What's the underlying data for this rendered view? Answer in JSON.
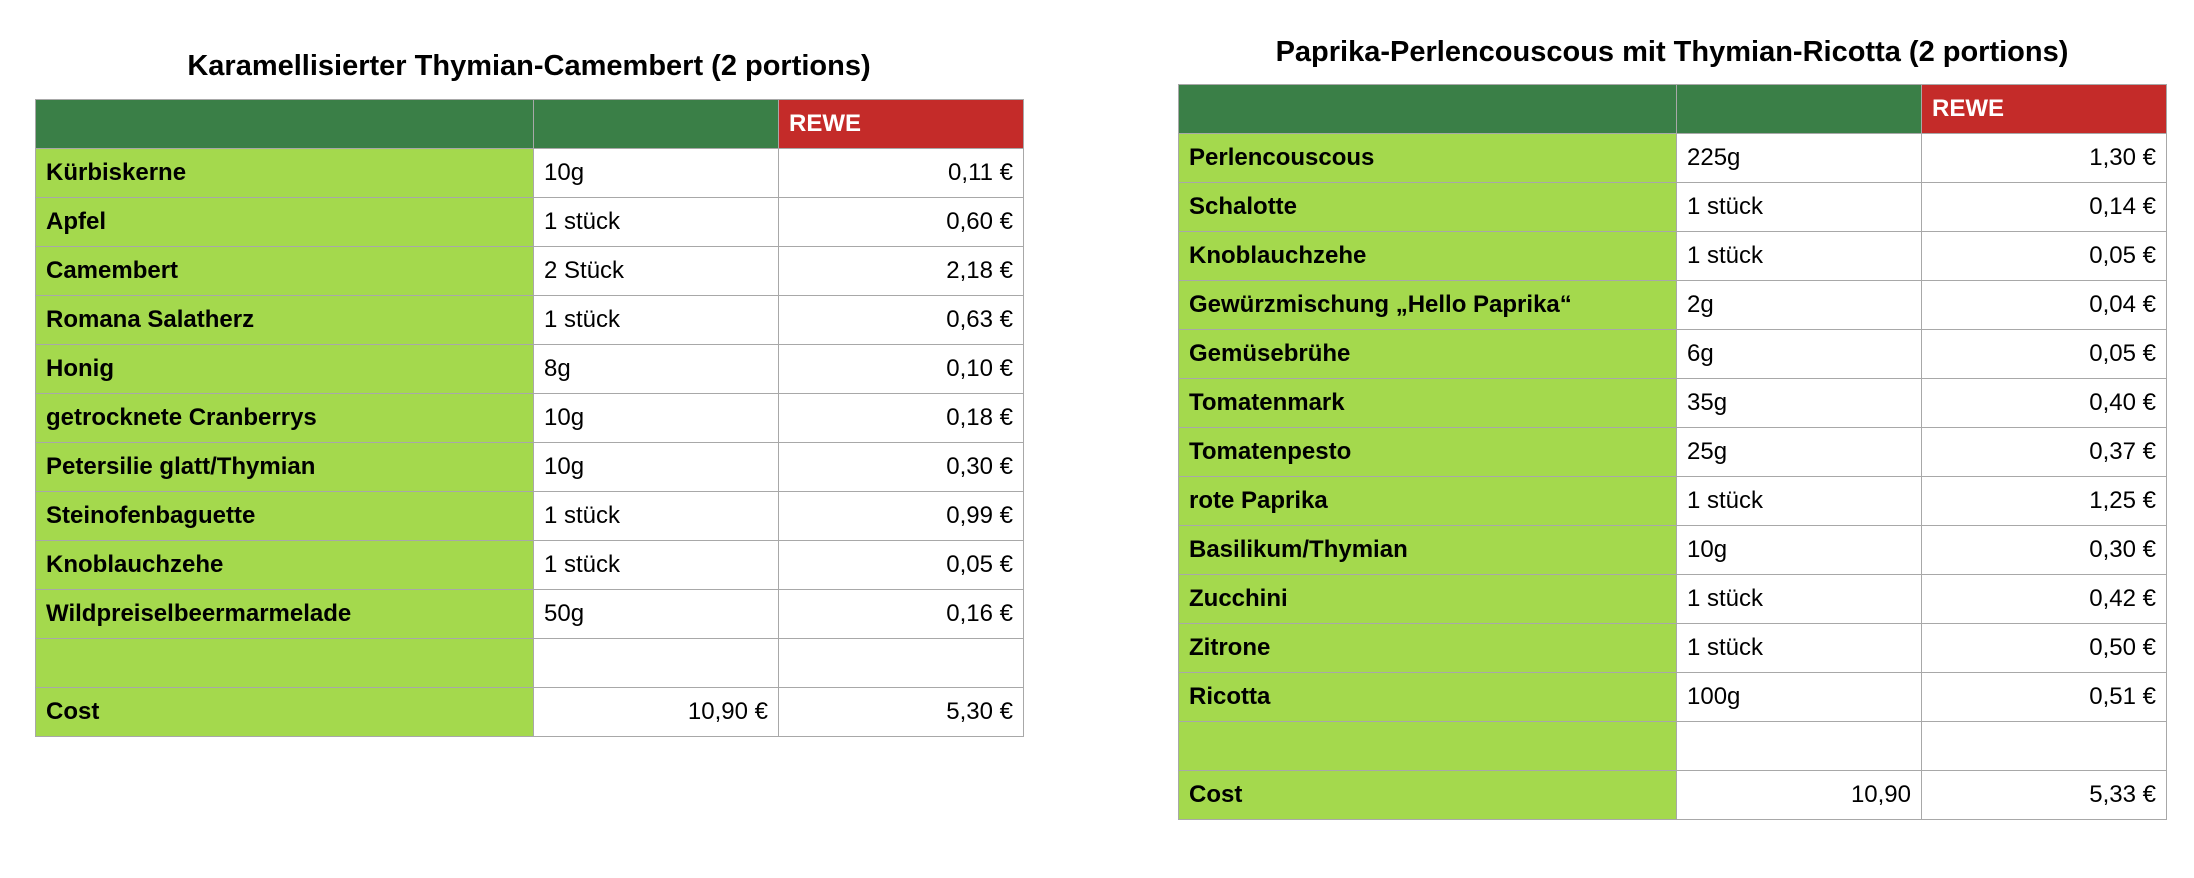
{
  "recipes": [
    {
      "title": "Karamellisierter Thymian-Camembert (2 portions)",
      "store": "REWE",
      "items": [
        {
          "name": "Kürbiskerne",
          "qty": "10g",
          "price": "0,11 €"
        },
        {
          "name": "Apfel",
          "qty": "1 stück",
          "price": "0,60 €"
        },
        {
          "name": "Camembert",
          "qty": "2 Stück",
          "price": "2,18 €"
        },
        {
          "name": "Romana Salatherz",
          "qty": "1 stück",
          "price": "0,63 €"
        },
        {
          "name": "Honig",
          "qty": "8g",
          "price": "0,10 €"
        },
        {
          "name": "getrocknete Cranberrys",
          "qty": "10g",
          "price": "0,18 €"
        },
        {
          "name": "Petersilie glatt/Thymian",
          "qty": "10g",
          "price": "0,30 €"
        },
        {
          "name": "Steinofenbaguette",
          "qty": "1 stück",
          "price": "0,99 €"
        },
        {
          "name": "Knoblauchzehe",
          "qty": "1 stück",
          "price": "0,05 €"
        },
        {
          "name": "Wildpreiselbeermarmelade",
          "qty": "50g",
          "price": "0,16 €"
        }
      ],
      "cost": {
        "label": "Cost",
        "value": "10,90 €",
        "store_value": "5,30 €"
      }
    },
    {
      "title": "Paprika-Perlencouscous mit Thymian-Ricotta (2 portions)",
      "store": "REWE",
      "items": [
        {
          "name": "Perlencouscous",
          "qty": "225g",
          "price": "1,30 €"
        },
        {
          "name": "Schalotte",
          "qty": "1 stück",
          "price": "0,14 €"
        },
        {
          "name": "Knoblauchzehe",
          "qty": "1 stück",
          "price": "0,05 €"
        },
        {
          "name": "Gewürzmischung „Hello Paprika“",
          "qty": "2g",
          "price": "0,04 €"
        },
        {
          "name": "Gemüsebrühe",
          "qty": "6g",
          "price": "0,05 €"
        },
        {
          "name": "Tomatenmark",
          "qty": "35g",
          "price": "0,40 €"
        },
        {
          "name": "Tomatenpesto",
          "qty": "25g",
          "price": "0,37 €"
        },
        {
          "name": "rote Paprika",
          "qty": "1 stück",
          "price": "1,25 €"
        },
        {
          "name": "Basilikum/Thymian",
          "qty": "10g",
          "price": "0,30 €"
        },
        {
          "name": "Zucchini",
          "qty": "1 stück",
          "price": "0,42 €"
        },
        {
          "name": "Zitrone",
          "qty": "1 stück",
          "price": "0,50 €"
        },
        {
          "name": "Ricotta",
          "qty": "100g",
          "price": "0,51 €"
        }
      ],
      "cost": {
        "label": "Cost",
        "value": "10,90",
        "store_value": "5,33 €"
      }
    }
  ],
  "colors": {
    "header_green": "#3a7f47",
    "name_cell_green": "#a4d94d",
    "store_red": "#c42b29"
  }
}
